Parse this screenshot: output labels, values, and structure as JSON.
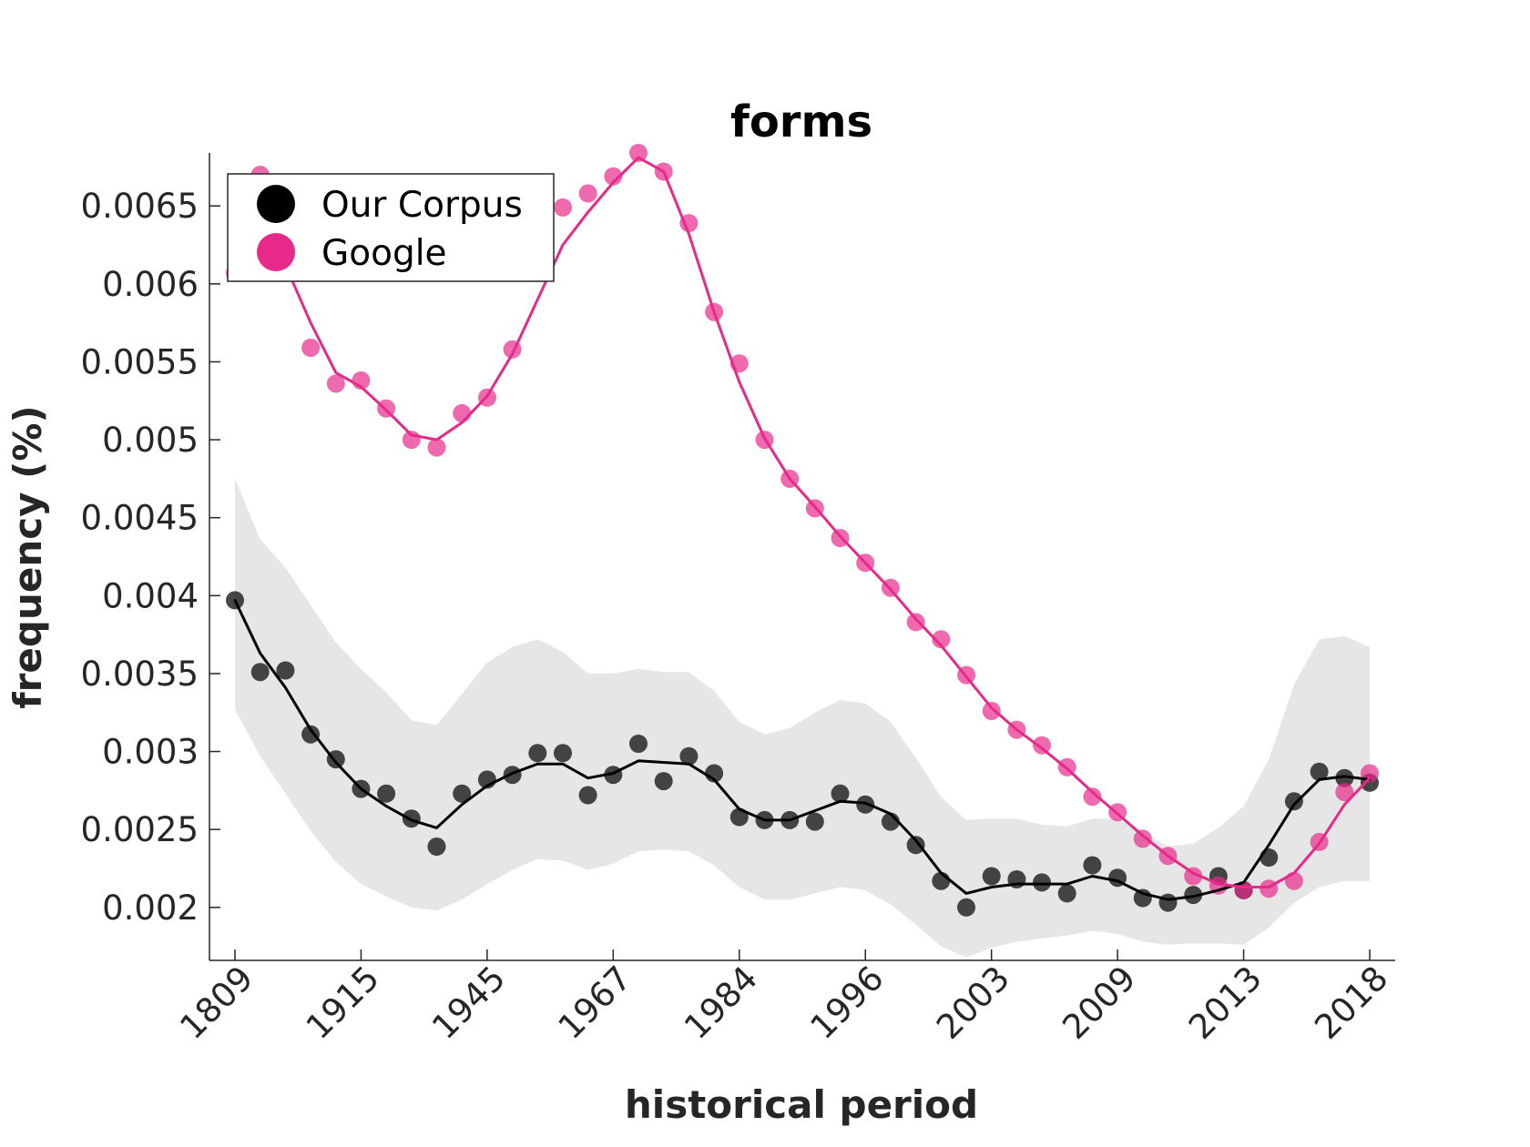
{
  "chart_data": {
    "type": "scatter",
    "title": "forms",
    "xlabel": "historical period",
    "ylabel": "frequency (%)",
    "x_tick_labels": [
      "1809",
      "1915",
      "1945",
      "1967",
      "1984",
      "1996",
      "2003",
      "2009",
      "2013",
      "2018"
    ],
    "y_ticks": [
      0.002,
      0.0025,
      0.003,
      0.0035,
      0.004,
      0.0045,
      0.005,
      0.0055,
      0.006,
      0.0065
    ],
    "y_tick_labels": [
      "0.002",
      "0.0025",
      "0.003",
      "0.0035",
      "0.004",
      "0.0045",
      "0.005",
      "0.0055",
      "0.006",
      "0.0065"
    ],
    "ylim": [
      0.00166,
      0.00684
    ],
    "legend_position": "top-left",
    "grid": false,
    "series": [
      {
        "name": "Our Corpus",
        "color": "#000000",
        "points": [
          0.00397,
          0.00351,
          0.00352,
          0.00311,
          0.00295,
          0.00276,
          0.00273,
          0.00257,
          0.00239,
          0.00273,
          0.00282,
          0.00285,
          0.00299,
          0.00299,
          0.00272,
          0.00285,
          0.00305,
          0.00281,
          0.00297,
          0.00286,
          0.00258,
          0.00256,
          0.00256,
          0.00255,
          0.00273,
          0.00266,
          0.00255,
          0.0024,
          0.00217,
          0.002,
          0.0022,
          0.00218,
          0.00216,
          0.00209,
          0.00227,
          0.00219,
          0.00206,
          0.00203,
          0.00208,
          0.0022,
          0.00211,
          0.00232,
          0.00268,
          0.00287,
          0.00283,
          0.0028
        ],
        "smooth": [
          0.00397,
          0.00363,
          0.00341,
          0.00314,
          0.00293,
          0.00276,
          0.00265,
          0.00256,
          0.00251,
          0.00266,
          0.00278,
          0.00286,
          0.00292,
          0.00292,
          0.00283,
          0.00286,
          0.00294,
          0.00293,
          0.00292,
          0.00282,
          0.00263,
          0.00256,
          0.00256,
          0.00262,
          0.00268,
          0.00267,
          0.0026,
          0.00243,
          0.00222,
          0.00209,
          0.00213,
          0.00215,
          0.00215,
          0.00215,
          0.0022,
          0.00217,
          0.00209,
          0.00205,
          0.00207,
          0.00211,
          0.00216,
          0.0024,
          0.00266,
          0.00282,
          0.00284,
          0.00282
        ],
        "band_upper": [
          0.00475,
          0.00436,
          0.00418,
          0.00394,
          0.0037,
          0.00353,
          0.00338,
          0.0032,
          0.00317,
          0.00337,
          0.00357,
          0.00367,
          0.00372,
          0.00364,
          0.0035,
          0.0035,
          0.00353,
          0.00351,
          0.00351,
          0.00339,
          0.00319,
          0.00311,
          0.00315,
          0.00325,
          0.00333,
          0.00331,
          0.00319,
          0.00296,
          0.00271,
          0.00256,
          0.00257,
          0.00257,
          0.00253,
          0.00252,
          0.00257,
          0.00257,
          0.00248,
          0.00239,
          0.00241,
          0.00251,
          0.00265,
          0.00295,
          0.00343,
          0.00372,
          0.00374,
          0.00367
        ],
        "band_lower": [
          0.00327,
          0.00297,
          0.00273,
          0.00249,
          0.00229,
          0.00215,
          0.00207,
          0.002,
          0.00198,
          0.00205,
          0.00215,
          0.00224,
          0.00231,
          0.0023,
          0.00224,
          0.00228,
          0.00236,
          0.00237,
          0.00236,
          0.00227,
          0.00213,
          0.00205,
          0.00205,
          0.00209,
          0.00213,
          0.00211,
          0.00202,
          0.00189,
          0.00175,
          0.00168,
          0.00174,
          0.00178,
          0.0018,
          0.00182,
          0.00185,
          0.00183,
          0.00178,
          0.00176,
          0.00177,
          0.00177,
          0.00176,
          0.00187,
          0.00203,
          0.00213,
          0.00217,
          0.00217
        ]
      },
      {
        "name": "Google",
        "color": "#e7298a",
        "points": [
          0.00607,
          0.0067,
          0.00609,
          0.00559,
          0.00536,
          0.00538,
          0.0052,
          0.005,
          0.00495,
          0.00517,
          0.00527,
          0.00558,
          0.00607,
          0.00649,
          0.00658,
          0.00669,
          0.00684,
          0.00672,
          0.00639,
          0.00582,
          0.00549,
          0.005,
          0.00475,
          0.00456,
          0.00437,
          0.00421,
          0.00405,
          0.00383,
          0.00372,
          0.00349,
          0.00326,
          0.00314,
          0.00304,
          0.0029,
          0.00271,
          0.00261,
          0.00244,
          0.00233,
          0.0022,
          0.00214,
          0.00211,
          0.00212,
          0.00217,
          0.00242,
          0.00274,
          0.00286
        ],
        "smooth": [
          0.00613,
          0.00625,
          0.00612,
          0.00575,
          0.00543,
          0.00534,
          0.00519,
          0.00503,
          0.005,
          0.00511,
          0.00528,
          0.00555,
          0.0059,
          0.00625,
          0.00646,
          0.00665,
          0.00681,
          0.00672,
          0.00632,
          0.00582,
          0.00537,
          0.00501,
          0.00475,
          0.00457,
          0.00438,
          0.00421,
          0.00404,
          0.00385,
          0.00368,
          0.00348,
          0.00328,
          0.00314,
          0.00302,
          0.00289,
          0.00274,
          0.0026,
          0.00246,
          0.00233,
          0.00222,
          0.00215,
          0.00213,
          0.00213,
          0.00222,
          0.00241,
          0.00266,
          0.00283
        ]
      }
    ]
  }
}
